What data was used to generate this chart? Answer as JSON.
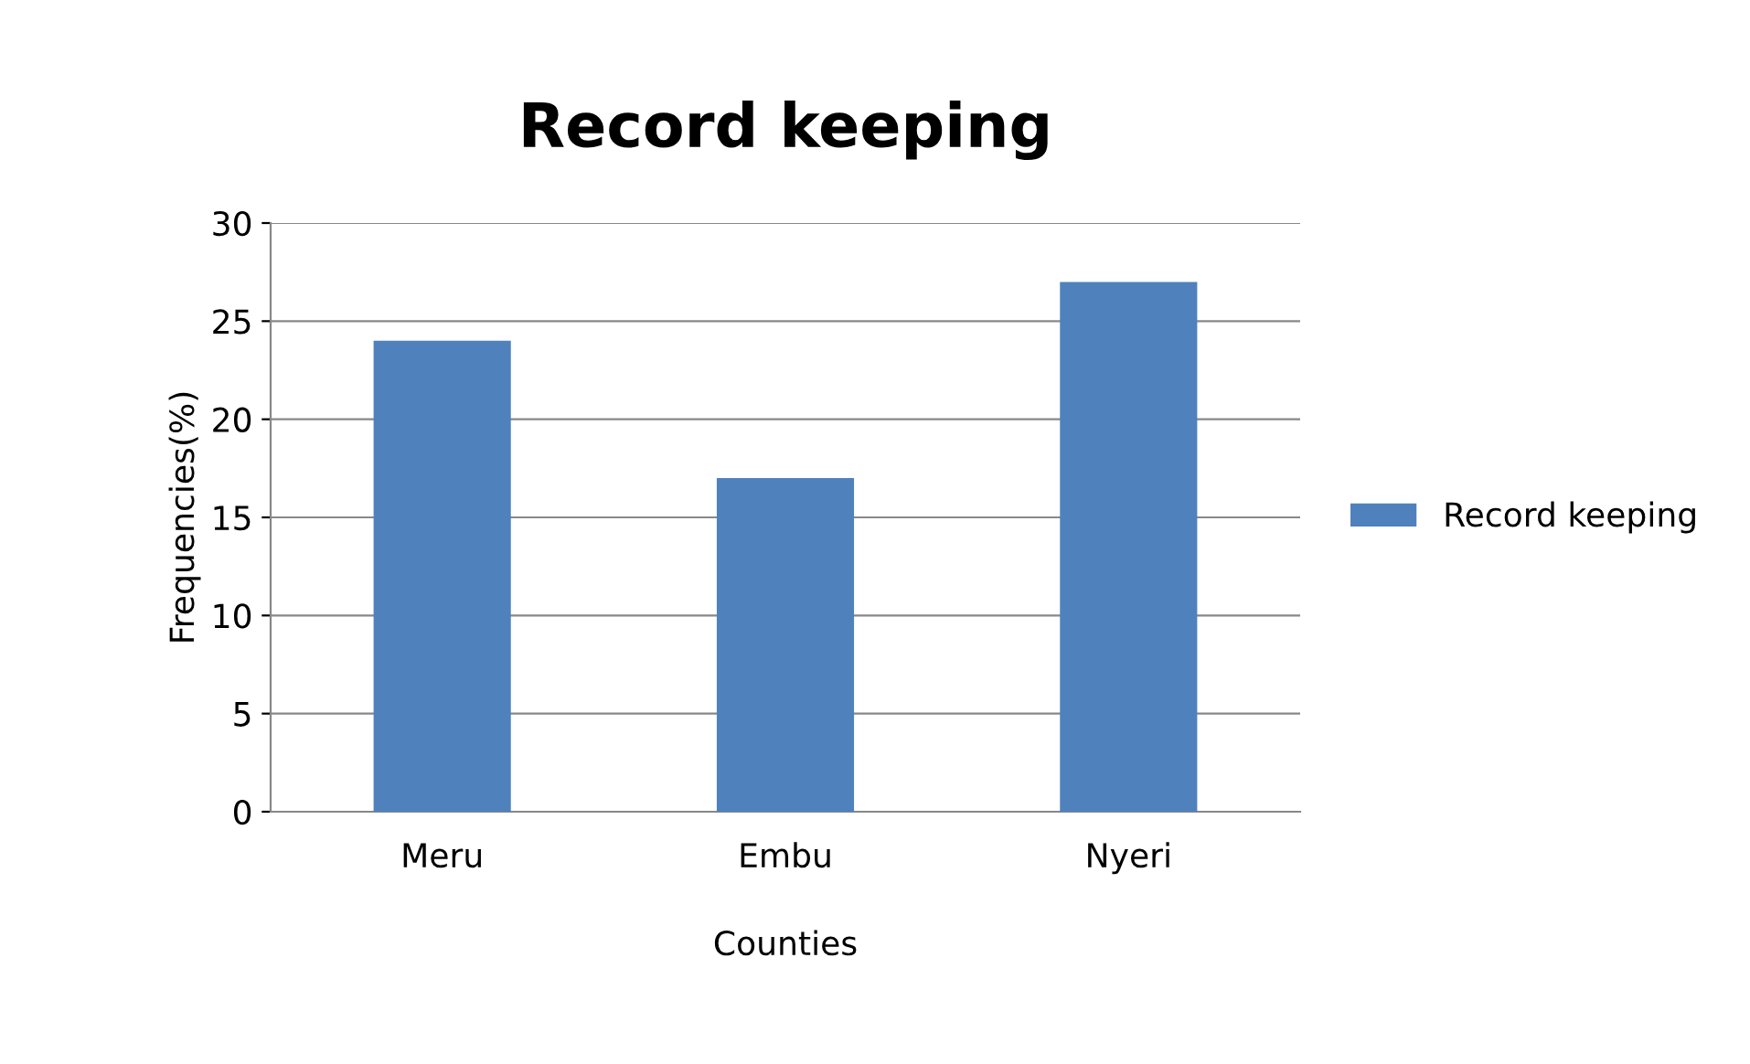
{
  "chart_data": {
    "type": "bar",
    "title": "Record keeping",
    "xlabel": "Counties",
    "ylabel": "Frequencies(%)",
    "categories": [
      "Meru",
      "Embu",
      "Nyeri"
    ],
    "series": [
      {
        "name": "Record keeping",
        "color": "#4f81bd",
        "values": [
          24,
          17,
          27
        ]
      }
    ],
    "ylim": [
      0,
      30
    ],
    "yticks": [
      0,
      5,
      10,
      15,
      20,
      25,
      30
    ],
    "grid": "y",
    "legend": "right"
  }
}
